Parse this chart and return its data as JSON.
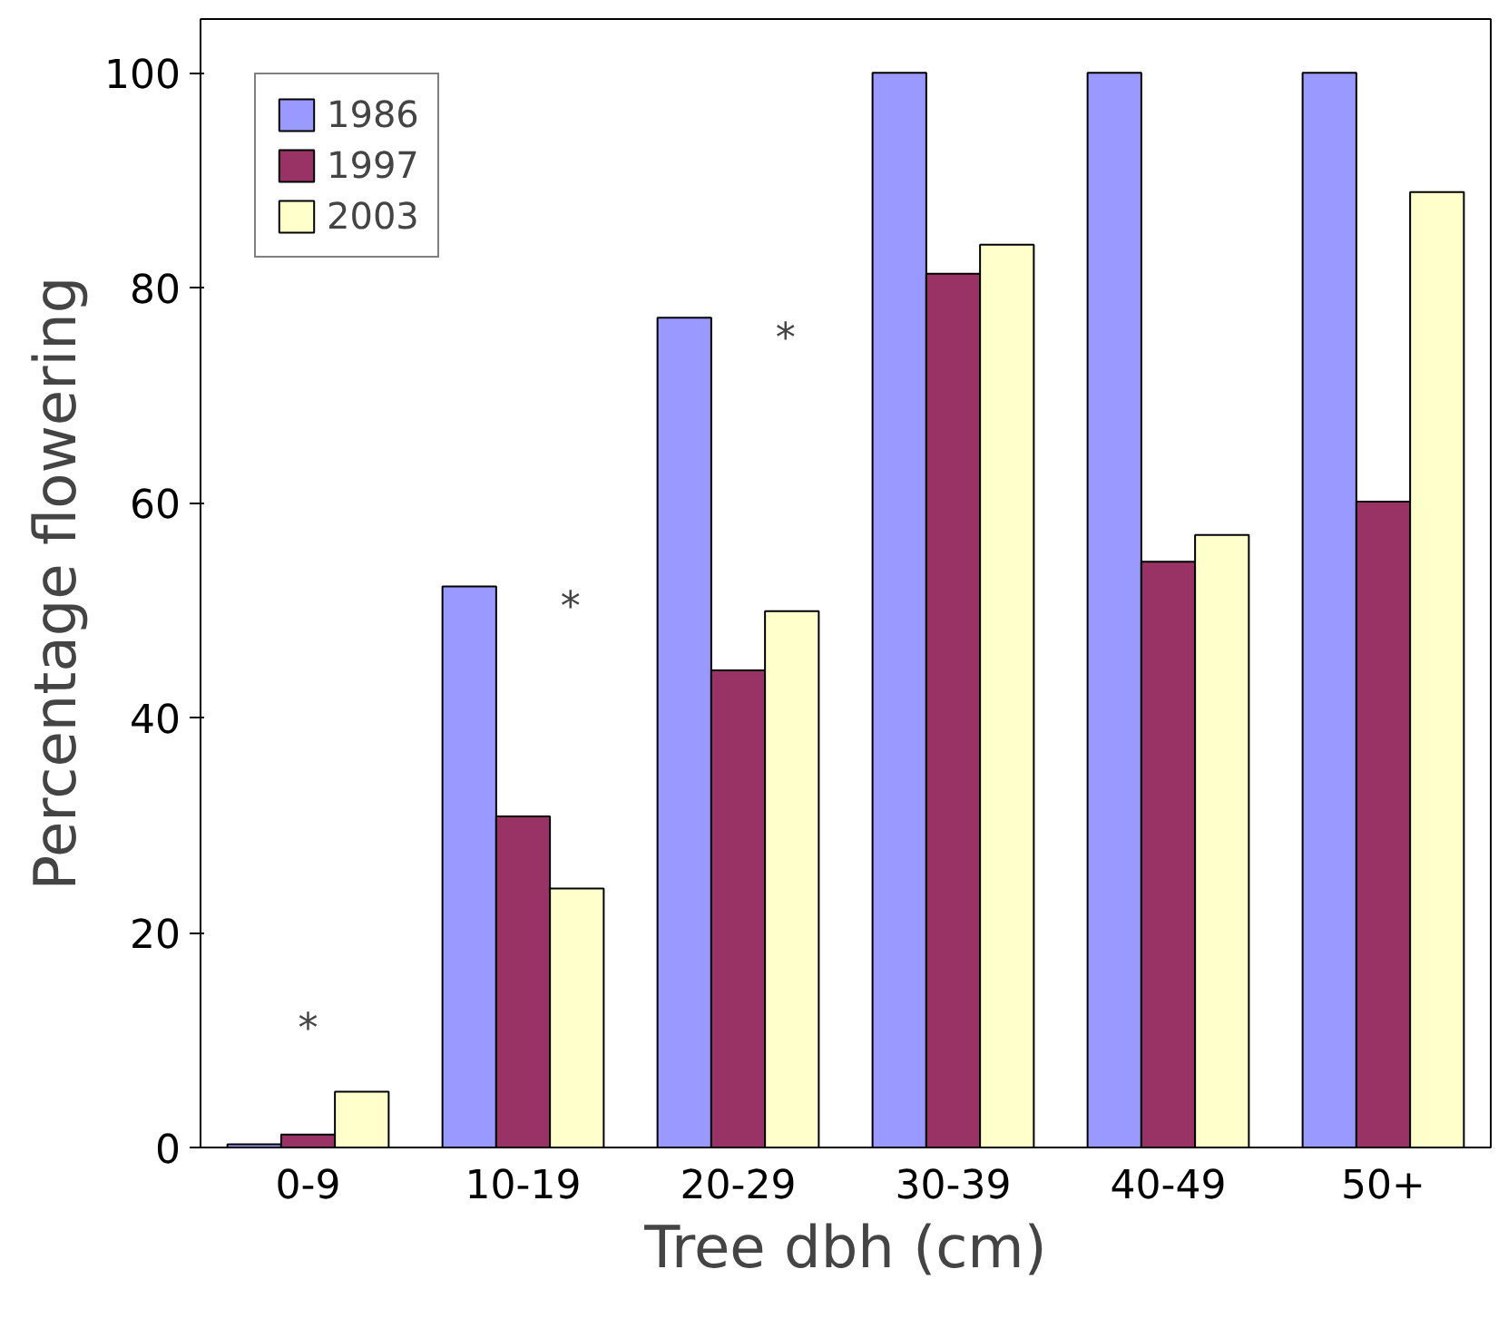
{
  "chart_data": {
    "type": "bar",
    "xlabel": "Tree dbh (cm)",
    "ylabel": "Percentage flowering",
    "categories": [
      "0-9",
      "10-19",
      "20-29",
      "30-39",
      "40-49",
      "50+"
    ],
    "series": [
      {
        "name": "1986",
        "color": "#9999ff",
        "values": [
          0.3,
          52.2,
          77.2,
          100,
          100,
          100
        ]
      },
      {
        "name": "1997",
        "color": "#993366",
        "values": [
          1.2,
          30.8,
          44.4,
          81.3,
          54.5,
          60.1
        ]
      },
      {
        "name": "2003",
        "color": "#ffffcc",
        "values": [
          5.2,
          24.1,
          49.9,
          84.0,
          57.0,
          88.9
        ]
      }
    ],
    "ylim": [
      0,
      105
    ],
    "yticks": [
      0,
      20,
      40,
      60,
      80,
      100
    ],
    "grid": false,
    "legend": "top left",
    "annotations": [
      "*",
      "*",
      "*"
    ]
  }
}
